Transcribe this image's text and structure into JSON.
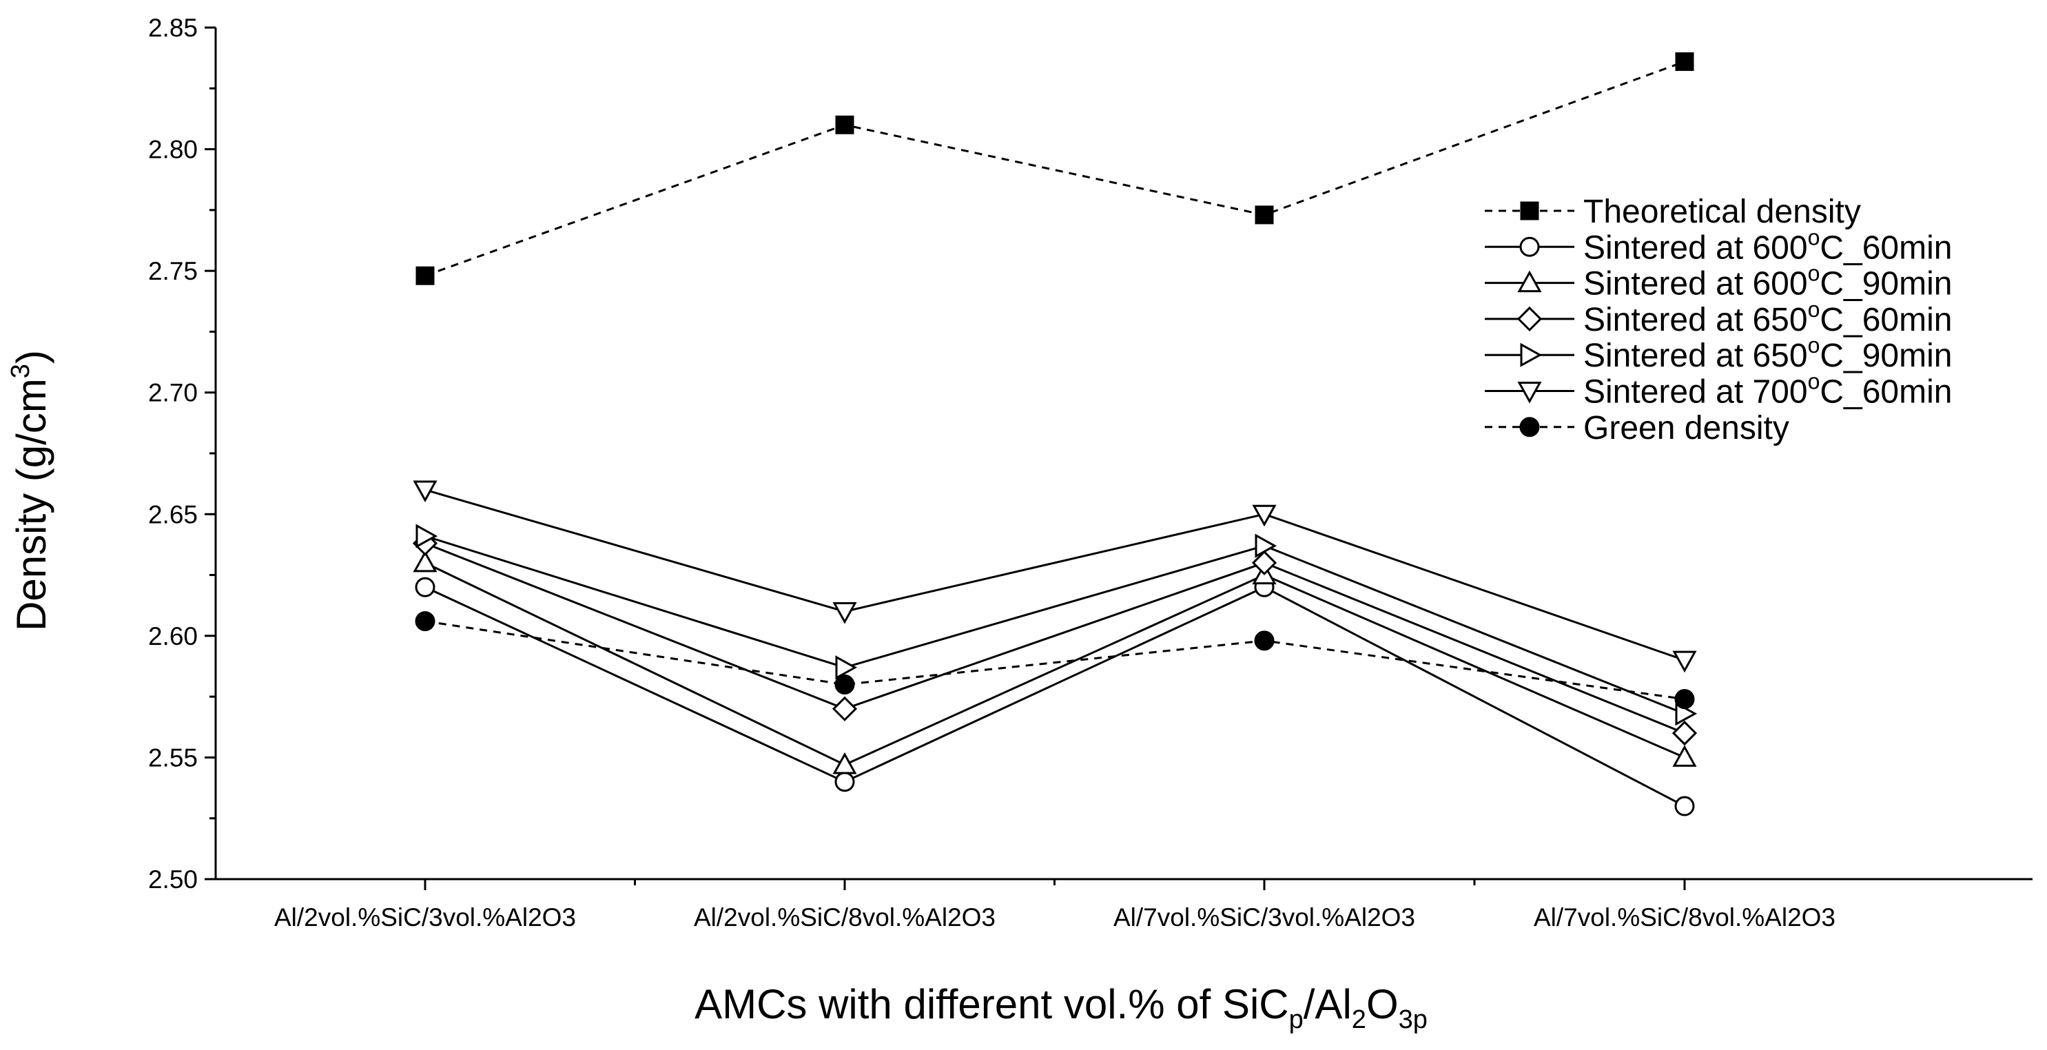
{
  "chart_data": {
    "type": "line",
    "title": "",
    "categories": [
      "Al/2vol.%SiC/3vol.%Al2O3",
      "Al/2vol.%SiC/8vol.%Al2O3",
      "Al/7vol.%SiC/3vol.%Al2O3",
      "Al/7vol.%SiC/8vol.%Al2O3"
    ],
    "xlabel": {
      "main": "AMCs with different vol.% of SiC",
      "sub1": "p",
      "mid": "/Al",
      "sub2": "2",
      "mid2": "O",
      "sub3": "3p"
    },
    "ylabel": {
      "main": "Density (g/cm",
      "sup": "3",
      "end": ")"
    },
    "ylim": [
      2.5,
      2.85
    ],
    "yticks": [
      "2.50",
      "2.55",
      "2.60",
      "2.65",
      "2.70",
      "2.75",
      "2.80",
      "2.85"
    ],
    "series": [
      {
        "name": "Theoretical density",
        "marker": "square-filled",
        "line": "dashed",
        "values": [
          2.748,
          2.81,
          2.773,
          2.836
        ]
      },
      {
        "name": "Sintered at 600°C_60min",
        "marker": "circle-open",
        "line": "solid",
        "values": [
          2.62,
          2.54,
          2.62,
          2.53
        ]
      },
      {
        "name": "Sintered at 600°C_90min",
        "marker": "triangle-up-open",
        "line": "solid",
        "values": [
          2.63,
          2.547,
          2.625,
          2.55
        ]
      },
      {
        "name": "Sintered at 650°C_60min",
        "marker": "diamond-open",
        "line": "solid",
        "values": [
          2.638,
          2.57,
          2.63,
          2.56
        ]
      },
      {
        "name": "Sintered at 650°C_90min",
        "marker": "triangle-right-open",
        "line": "solid",
        "values": [
          2.641,
          2.587,
          2.637,
          2.568
        ]
      },
      {
        "name": "Sintered at 700°C_60min",
        "marker": "triangle-down-open",
        "line": "solid",
        "values": [
          2.66,
          2.61,
          2.65,
          2.59
        ]
      },
      {
        "name": "Green density",
        "marker": "circle-filled",
        "line": "dashed",
        "values": [
          2.606,
          2.58,
          2.598,
          2.574
        ]
      }
    ],
    "legend": {
      "position": "right",
      "labels": [
        {
          "pre": "Theoretical density",
          "sup": "",
          "post": ""
        },
        {
          "pre": "Sintered at 600",
          "sup": "o",
          "post": "C_60min"
        },
        {
          "pre": "Sintered at 600",
          "sup": "o",
          "post": "C_90min"
        },
        {
          "pre": "Sintered at 650",
          "sup": "o",
          "post": "C_60min"
        },
        {
          "pre": "Sintered at 650",
          "sup": "o",
          "post": "C_90min"
        },
        {
          "pre": "Sintered at 700",
          "sup": "o",
          "post": "C_60min"
        },
        {
          "pre": "Green density",
          "sup": "",
          "post": ""
        }
      ]
    }
  }
}
